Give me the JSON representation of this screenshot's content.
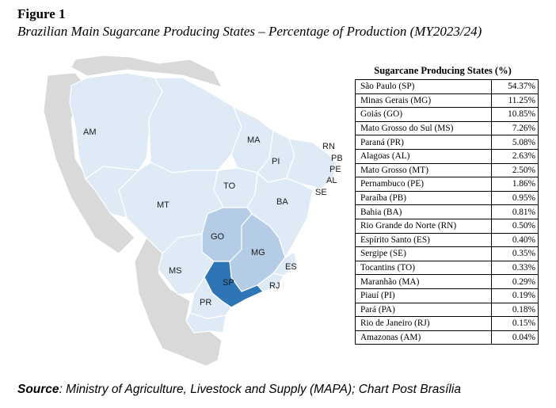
{
  "figure": {
    "label": "Figure 1",
    "title": "Brazilian Main Sugarcane Producing States – Percentage of Production (MY2023/24)"
  },
  "map": {
    "colors": {
      "background_countries": "#d9d9d9",
      "low_share": "#deebf7",
      "medium_share": "#b4cce6",
      "top_share": "#2e75b6",
      "border": "#ffffff"
    },
    "state_labels": [
      "AM",
      "MA",
      "RN",
      "PB",
      "PE",
      "AL",
      "SE",
      "PI",
      "TO",
      "BA",
      "MT",
      "GO",
      "MG",
      "ES",
      "MS",
      "SP",
      "RJ",
      "PR"
    ]
  },
  "table": {
    "title": "Sugarcane Producing States (%)",
    "rows": [
      {
        "state": "São Paulo (SP)",
        "value": "54.37%"
      },
      {
        "state": "Minas Gerais (MG)",
        "value": "11.25%"
      },
      {
        "state": "Goiás (GO)",
        "value": "10.85%"
      },
      {
        "state": "Mato Grosso do Sul (MS)",
        "value": "7.26%"
      },
      {
        "state": "Paraná (PR)",
        "value": "5.08%"
      },
      {
        "state": "Alagoas (AL)",
        "value": "2.63%"
      },
      {
        "state": "Mato Grosso (MT)",
        "value": "2.50%"
      },
      {
        "state": "Pernambuco (PE)",
        "value": "1.86%"
      },
      {
        "state": "Paraíba (PB)",
        "value": "0.95%"
      },
      {
        "state": "Bahia (BA)",
        "value": "0.81%"
      },
      {
        "state": "Rio Grande do Norte (RN)",
        "value": "0.50%"
      },
      {
        "state": "Espírito Santo (ES)",
        "value": "0.40%"
      },
      {
        "state": "Sergipe (SE)",
        "value": "0.35%"
      },
      {
        "state": "Tocantins (TO)",
        "value": "0.33%"
      },
      {
        "state": "Maranhão (MA)",
        "value": "0.29%"
      },
      {
        "state": "Piauí (PI)",
        "value": "0.19%"
      },
      {
        "state": "Pará (PA)",
        "value": "0.18%"
      },
      {
        "state": "Rio de Janeiro (RJ)",
        "value": "0.15%"
      },
      {
        "state": "Amazonas (AM)",
        "value": "0.04%"
      }
    ]
  },
  "source": {
    "label": "Source",
    "text": ": Ministry of Agriculture, Livestock and Supply (MAPA); Chart Post Brasília"
  }
}
